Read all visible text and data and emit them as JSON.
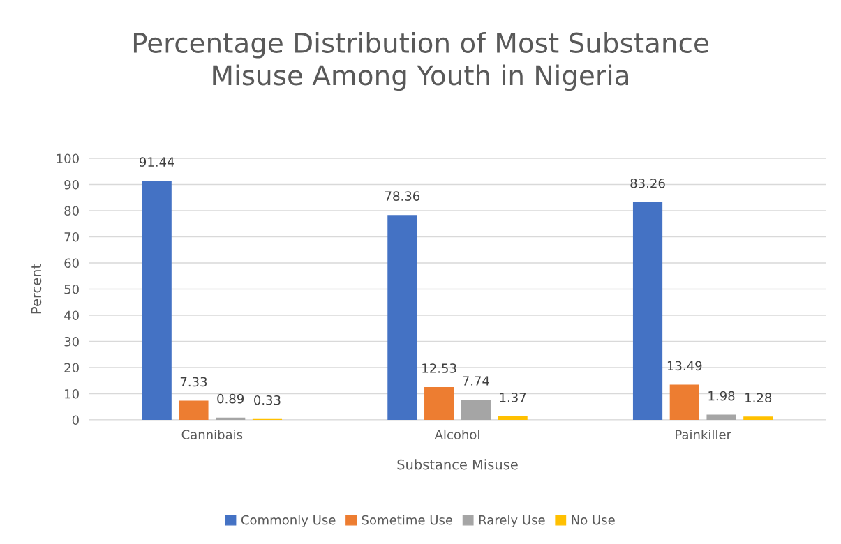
{
  "chart_data": {
    "type": "bar",
    "title": "Percentage Distribution of Most Substance\nMisuse Among Youth in Nigeria",
    "xlabel": "Substance Misuse",
    "ylabel": "Percent",
    "categories": [
      "Cannibais",
      "Alcohol",
      "Painkiller"
    ],
    "series": [
      {
        "name": "Commonly Use",
        "color": "#4472c4",
        "values": [
          91.44,
          78.36,
          83.26
        ]
      },
      {
        "name": "Sometime Use",
        "color": "#ed7d31",
        "values": [
          7.33,
          12.53,
          13.49
        ]
      },
      {
        "name": "Rarely Use",
        "color": "#a5a5a5",
        "values": [
          0.89,
          7.74,
          1.98
        ]
      },
      {
        "name": "No Use",
        "color": "#ffc000",
        "values": [
          0.33,
          1.37,
          1.28
        ]
      }
    ],
    "ylim": [
      0,
      100
    ],
    "yticks": [
      0,
      10,
      20,
      30,
      40,
      50,
      60,
      70,
      80,
      90,
      100
    ],
    "grid": "y",
    "legend": "bottom",
    "data_labels": true
  }
}
